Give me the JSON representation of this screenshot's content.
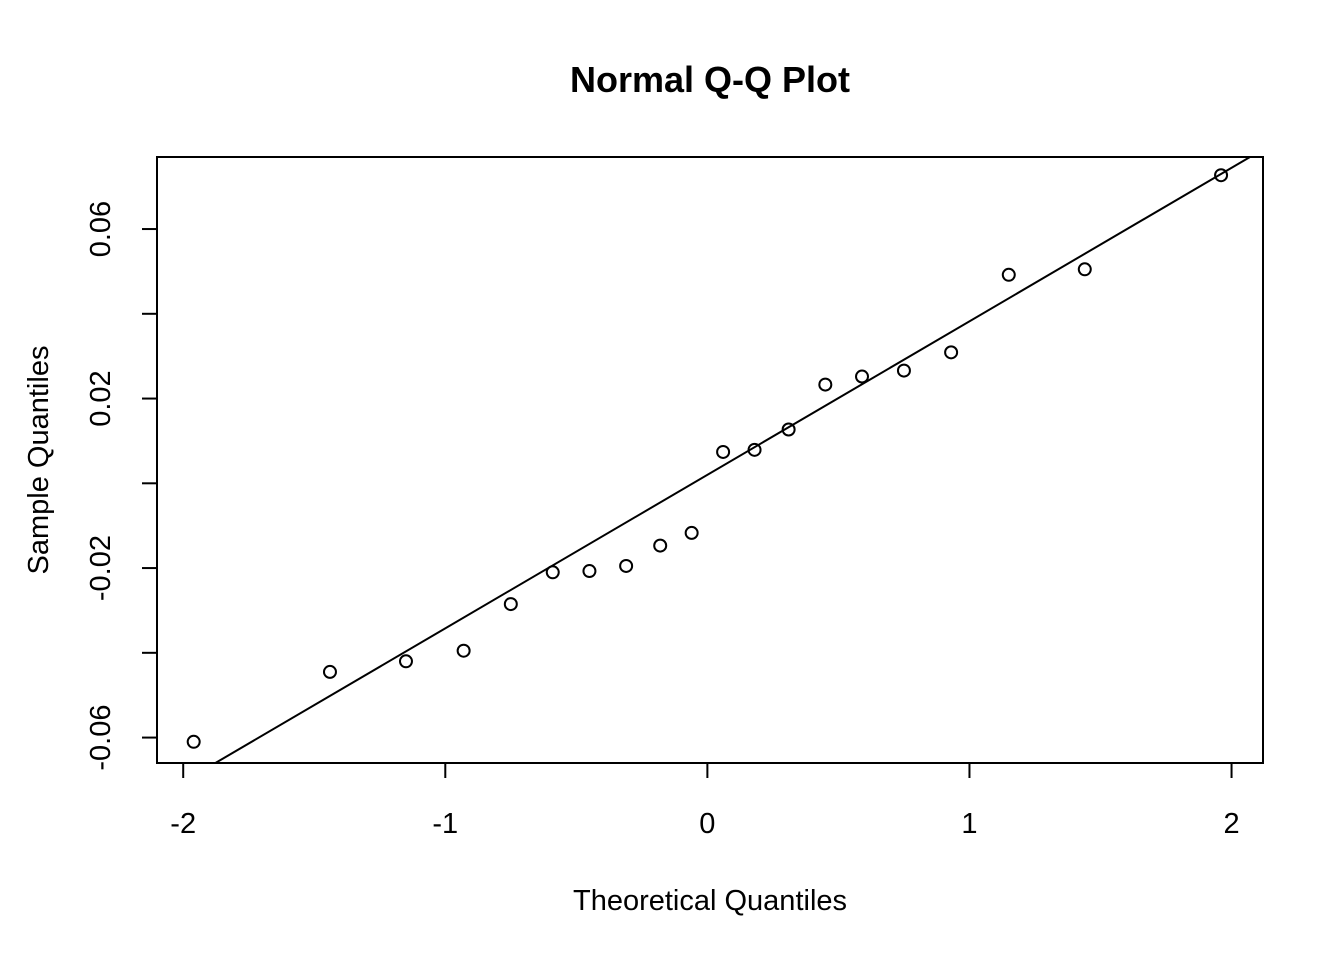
{
  "chart_data": {
    "type": "scatter",
    "title": "Normal Q-Q Plot",
    "xlabel": "Theoretical Quantiles",
    "ylabel": "Sample Quantiles",
    "xlim": [
      -2.1,
      2.12
    ],
    "ylim": [
      -0.066,
      0.077
    ],
    "x_ticks": [
      -2,
      -1,
      0,
      1,
      2
    ],
    "x_tick_labels": [
      "-2",
      "-1",
      "0",
      "1",
      "2"
    ],
    "y_ticks": [
      -0.06,
      -0.04,
      -0.02,
      0,
      0.02,
      0.04,
      0.06
    ],
    "y_tick_labels": [
      "-0.06",
      "",
      "-0.02",
      "",
      "0.02",
      "",
      "0.06"
    ],
    "grid": false,
    "points": {
      "x": [
        -1.96,
        -1.44,
        -1.15,
        -0.93,
        -0.75,
        -0.59,
        -0.45,
        -0.31,
        -0.18,
        -0.06,
        0.06,
        0.18,
        0.31,
        0.45,
        0.59,
        0.75,
        0.93,
        1.15,
        1.44,
        1.96
      ],
      "y": [
        -0.061,
        -0.0445,
        -0.042,
        -0.0395,
        -0.0285,
        -0.021,
        -0.0207,
        -0.0195,
        -0.0147,
        -0.0117,
        0.0074,
        0.0079,
        0.0127,
        0.0233,
        0.0252,
        0.0266,
        0.0309,
        0.0492,
        0.0505,
        0.0727
      ]
    },
    "reference_line": {
      "x1": -1.96,
      "y1": -0.069,
      "x2": 1.96,
      "y2": 0.073
    }
  }
}
